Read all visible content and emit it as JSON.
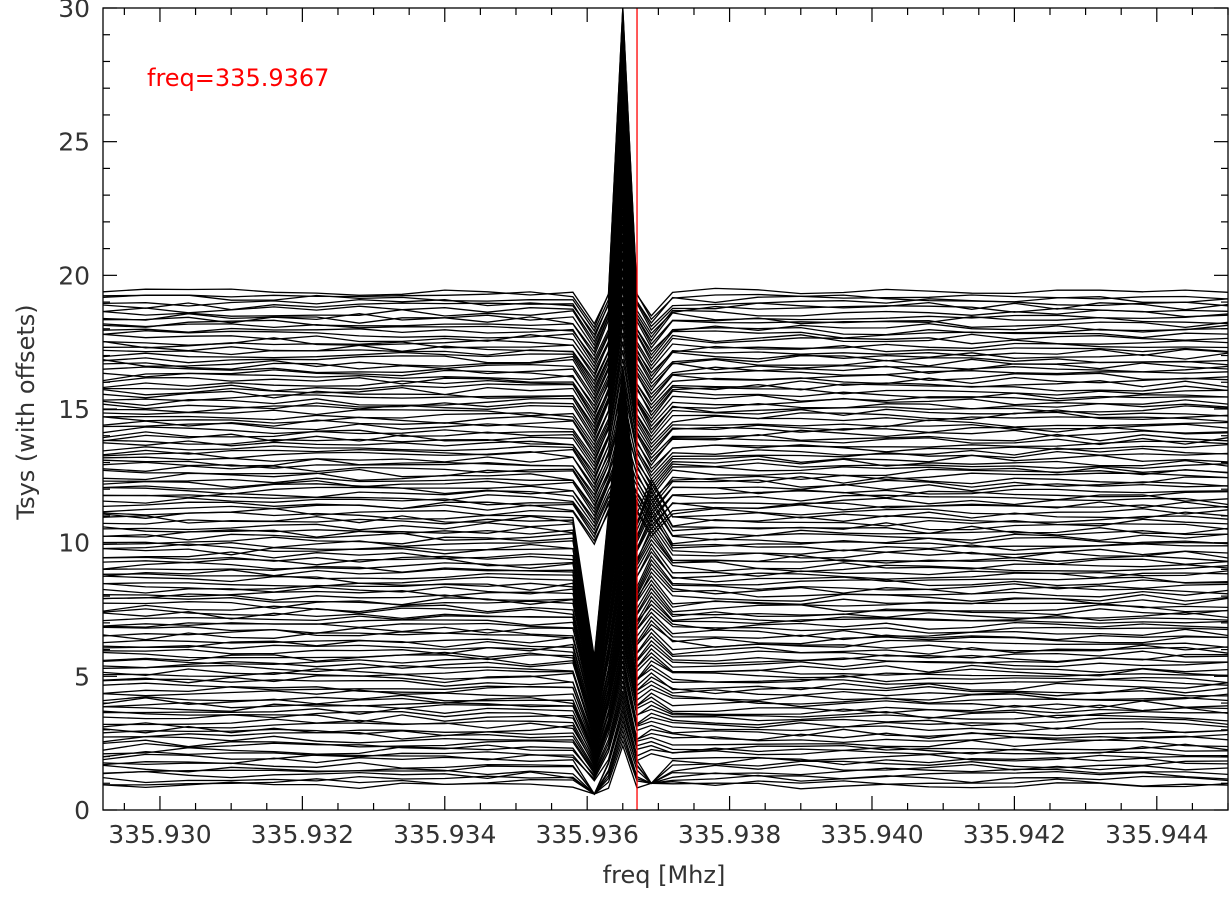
{
  "chart_data": {
    "type": "line",
    "title": "",
    "xlabel": "freq [Mhz]",
    "ylabel": "Tsys (with offsets)",
    "xlim": [
      335.9292,
      335.945
    ],
    "ylim": [
      0,
      30
    ],
    "x_ticks": [
      335.93,
      335.932,
      335.934,
      335.936,
      335.938,
      335.94,
      335.942,
      335.944
    ],
    "x_tick_labels": [
      "335.930",
      "335.932",
      "335.934",
      "335.936",
      "335.938",
      "335.940",
      "335.942",
      "335.944"
    ],
    "y_ticks": [
      0,
      5,
      10,
      15,
      20,
      25,
      30
    ],
    "y_tick_labels": [
      "0",
      "5",
      "10",
      "15",
      "20",
      "25",
      "30"
    ],
    "grid": false,
    "series_color": "#000000",
    "marker_color": "#ff0000",
    "series_template": {
      "count": 140,
      "baseline_start": 0.9,
      "baseline_step": 0.133,
      "x": [
        335.9292,
        335.9298,
        335.9304,
        335.931,
        335.9316,
        335.9322,
        335.9328,
        335.9334,
        335.934,
        335.9346,
        335.9352,
        335.9358,
        335.9361,
        335.9363,
        335.9365,
        335.9367,
        335.9369,
        335.9372,
        335.9378,
        335.9384,
        335.939,
        335.9396,
        335.9402,
        335.9408,
        335.9414,
        335.942,
        335.9426,
        335.9432,
        335.9438,
        335.9444,
        335.945
      ],
      "spike_x": [
        335.9361,
        335.9365,
        335.9369
      ],
      "spike_peak": 30.0,
      "spike_floor": 0.6
    },
    "vertical_marker": {
      "x": 335.9367,
      "label": "freq=335.9367"
    }
  }
}
